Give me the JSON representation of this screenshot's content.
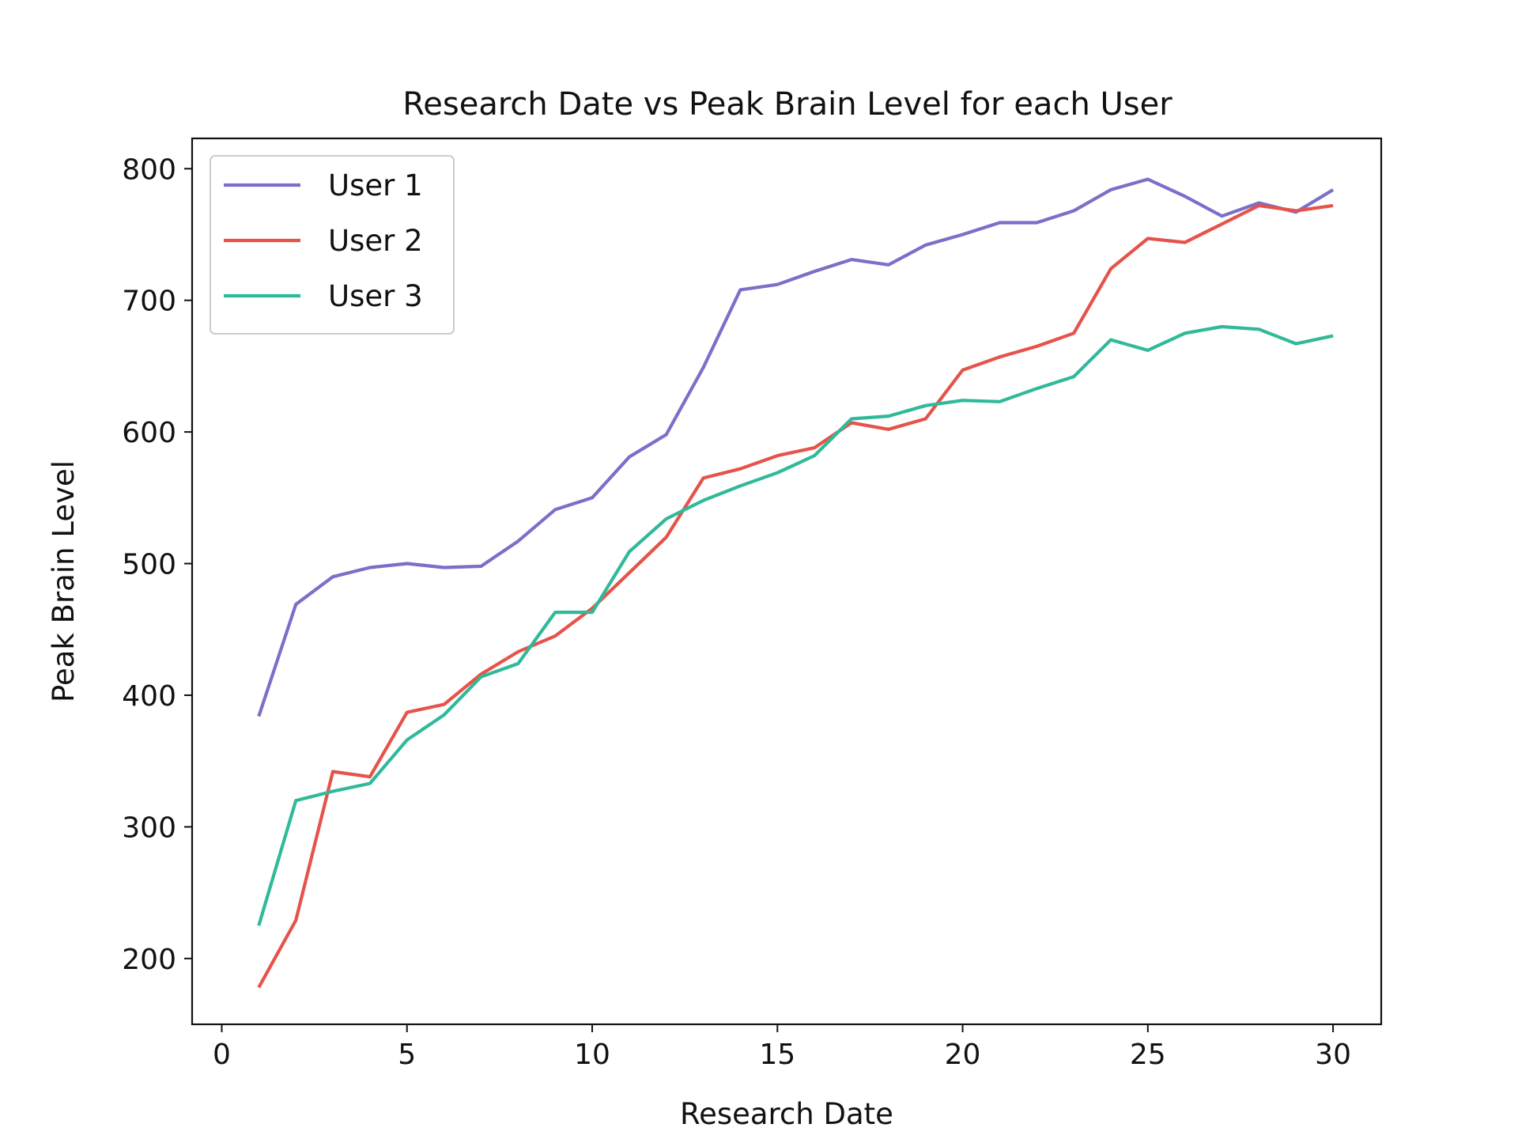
{
  "chart_data": {
    "type": "line",
    "title": "Research Date vs Peak Brain Level for each User",
    "xlabel": "Research Date",
    "ylabel": "Peak Brain Level",
    "xlim": [
      -0.8,
      31.3
    ],
    "ylim": [
      150,
      823
    ],
    "xticks": [
      0,
      5,
      10,
      15,
      20,
      25,
      30
    ],
    "yticks": [
      200,
      300,
      400,
      500,
      600,
      700,
      800
    ],
    "grid": false,
    "legend_position": "upper-left",
    "x": [
      1,
      2,
      3,
      4,
      5,
      6,
      7,
      8,
      9,
      10,
      11,
      12,
      13,
      14,
      15,
      16,
      17,
      18,
      19,
      20,
      21,
      22,
      23,
      24,
      25,
      26,
      27,
      28,
      29,
      30
    ],
    "series": [
      {
        "name": "User 1",
        "color": "#7b6fc9",
        "values": [
          384,
          469,
          490,
          497,
          500,
          497,
          498,
          517,
          541,
          550,
          581,
          598,
          649,
          708,
          712,
          722,
          731,
          727,
          742,
          750,
          759,
          759,
          768,
          784,
          792,
          779,
          764,
          774,
          767,
          784
        ]
      },
      {
        "name": "User 2",
        "color": "#e5534b",
        "values": [
          178,
          229,
          342,
          338,
          387,
          393,
          416,
          433,
          445,
          466,
          493,
          520,
          565,
          572,
          582,
          588,
          607,
          602,
          610,
          647,
          657,
          665,
          675,
          724,
          747,
          744,
          758,
          772,
          768,
          772
        ]
      },
      {
        "name": "User 3",
        "color": "#30b99a",
        "values": [
          225,
          320,
          327,
          333,
          366,
          385,
          414,
          424,
          463,
          463,
          509,
          534,
          548,
          559,
          569,
          582,
          610,
          612,
          620,
          624,
          623,
          633,
          642,
          670,
          662,
          675,
          680,
          678,
          667,
          673
        ]
      }
    ]
  }
}
